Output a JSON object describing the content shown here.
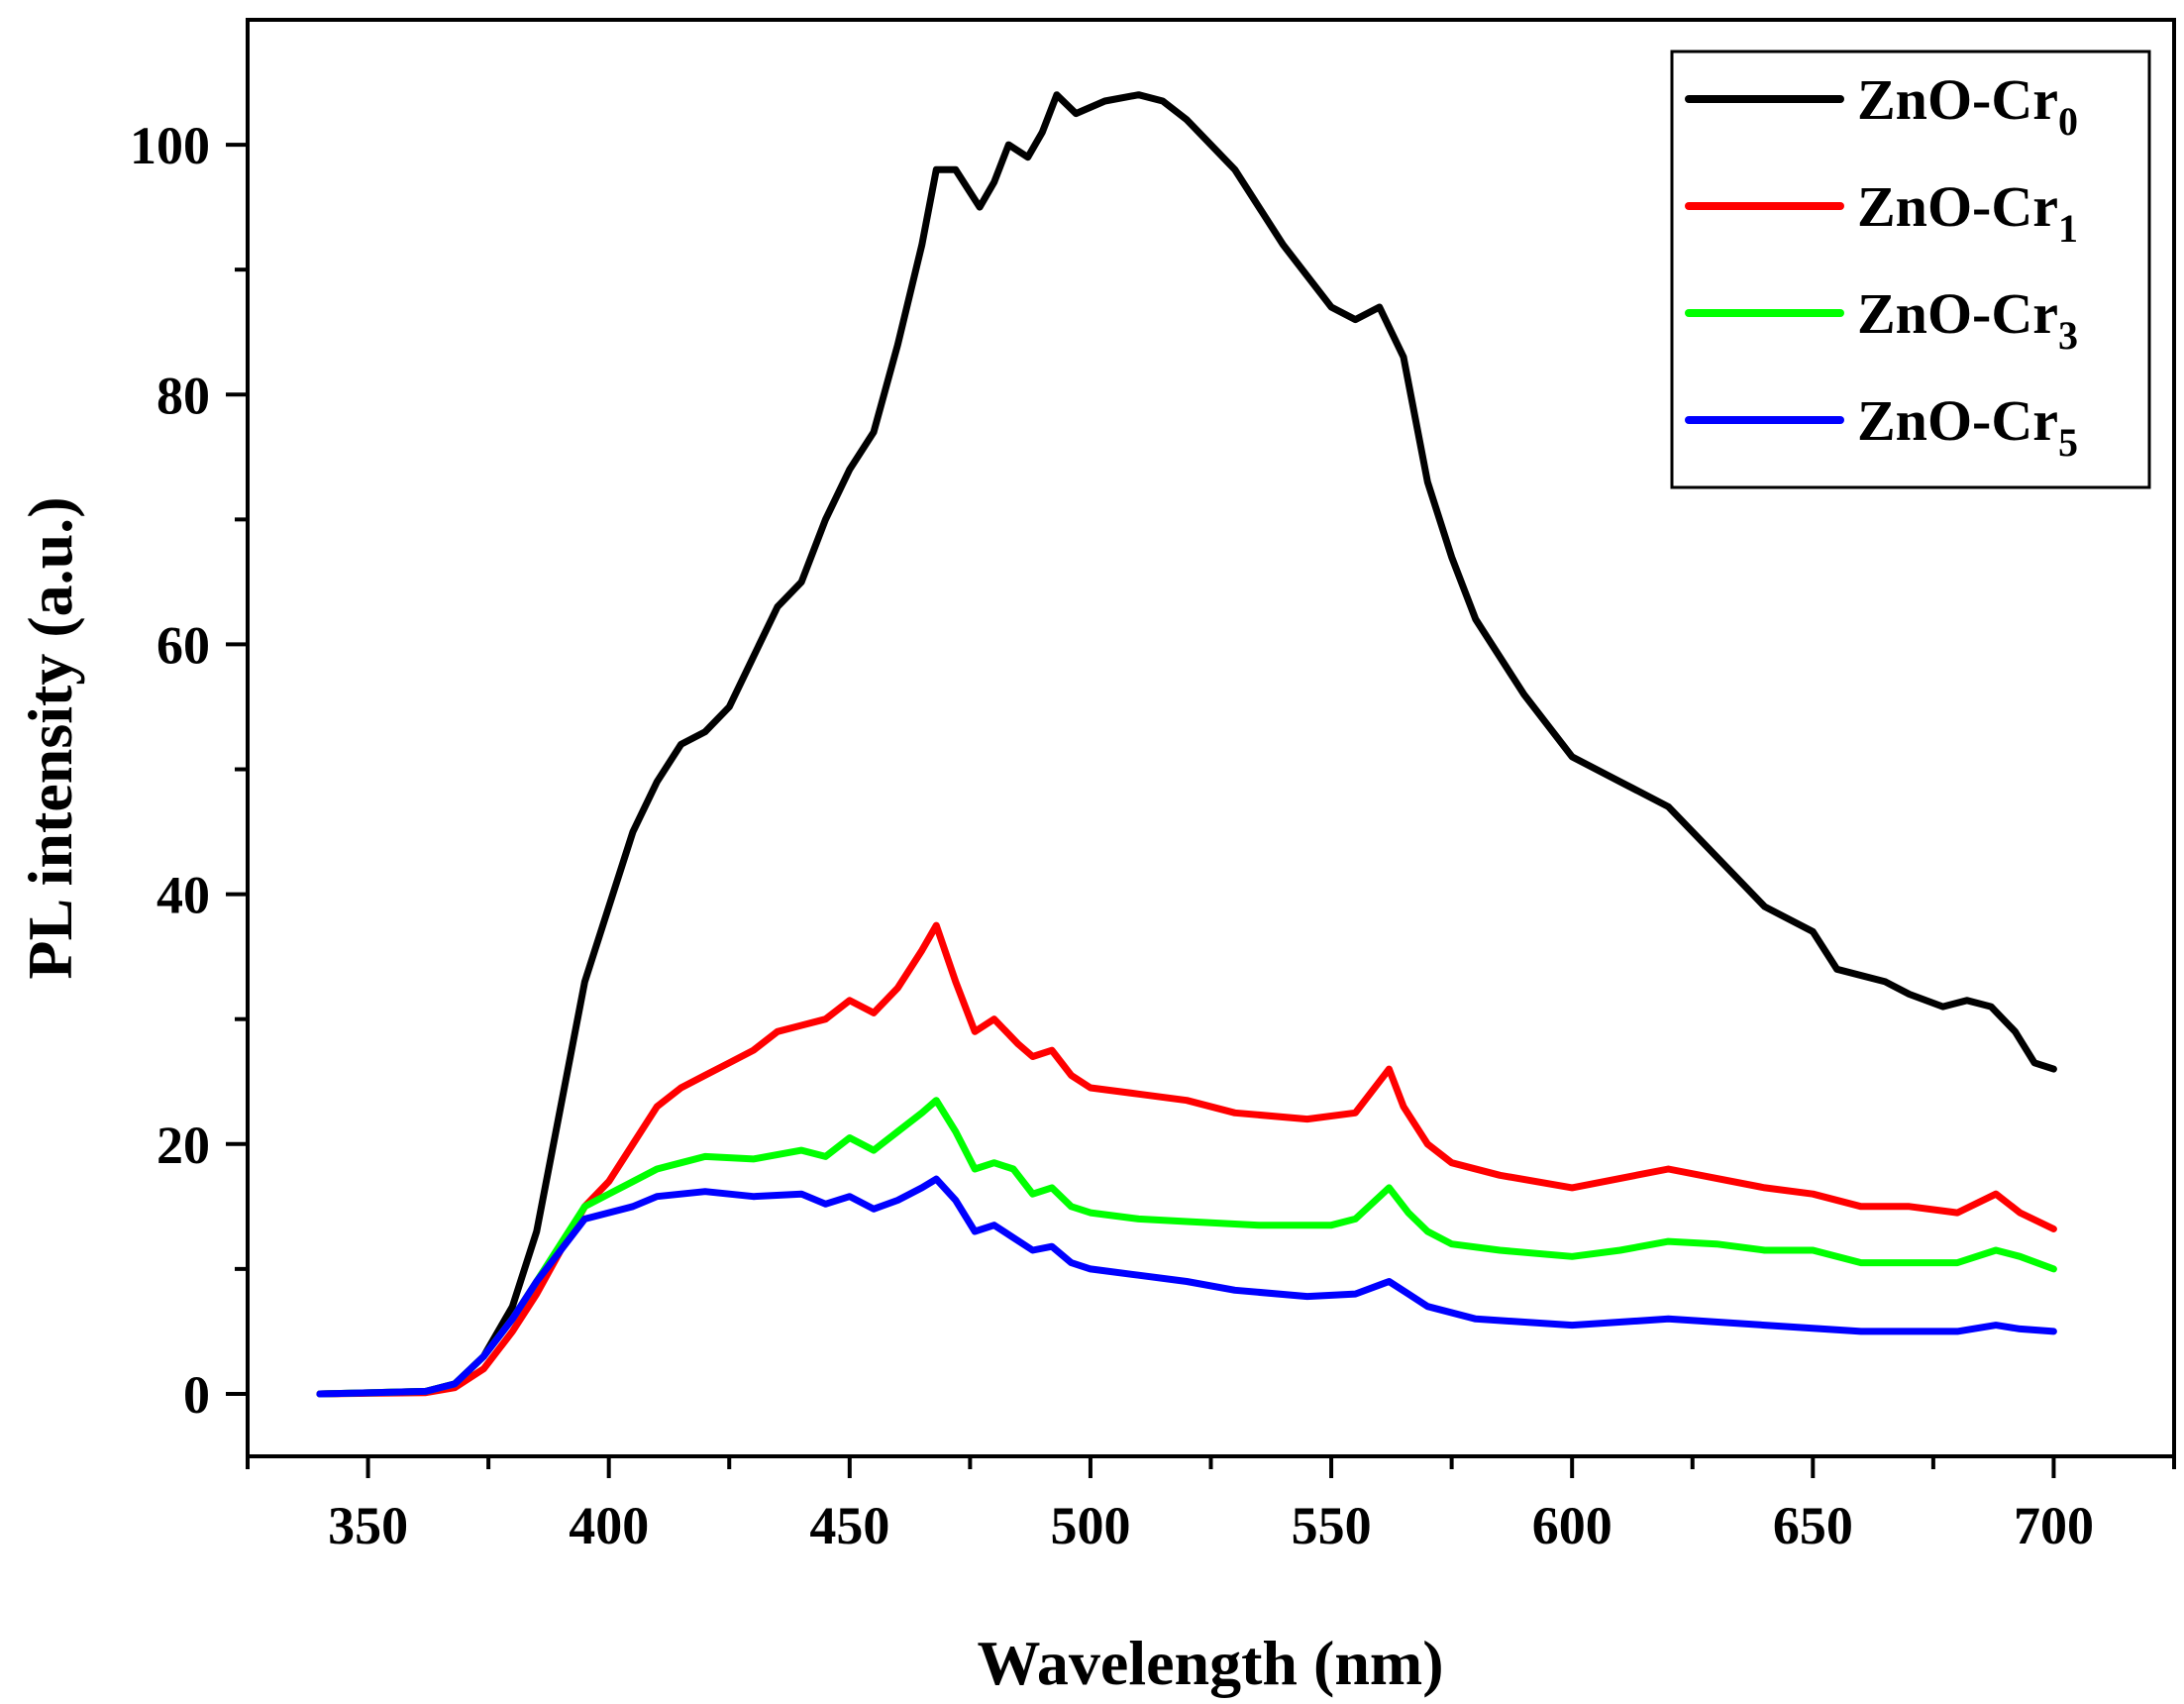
{
  "chart_data": {
    "type": "line",
    "title": "",
    "xlabel": "Wavelength (nm)",
    "ylabel": "PL intensity (a.u.)",
    "xlim": [
      325,
      725
    ],
    "ylim": [
      -5,
      110
    ],
    "xticks": [
      350,
      400,
      450,
      500,
      550,
      600,
      650,
      700
    ],
    "yticks": [
      0,
      20,
      40,
      60,
      80,
      100
    ],
    "grid": false,
    "legend_position": "top-right",
    "series": [
      {
        "name": "ZnO-Cr",
        "subscript": "0",
        "color": "#000000",
        "points": [
          [
            340,
            0
          ],
          [
            362,
            0.2
          ],
          [
            368,
            0.8
          ],
          [
            374,
            3
          ],
          [
            380,
            7
          ],
          [
            385,
            13
          ],
          [
            390,
            23
          ],
          [
            395,
            33
          ],
          [
            400,
            39
          ],
          [
            405,
            45
          ],
          [
            410,
            49
          ],
          [
            415,
            52
          ],
          [
            420,
            53
          ],
          [
            425,
            55
          ],
          [
            430,
            59
          ],
          [
            435,
            63
          ],
          [
            440,
            65
          ],
          [
            445,
            70
          ],
          [
            450,
            74
          ],
          [
            455,
            77
          ],
          [
            460,
            84
          ],
          [
            465,
            92
          ],
          [
            468,
            98
          ],
          [
            472,
            98
          ],
          [
            477,
            95
          ],
          [
            480,
            97
          ],
          [
            483,
            100
          ],
          [
            487,
            99
          ],
          [
            490,
            101
          ],
          [
            493,
            104
          ],
          [
            497,
            102.5
          ],
          [
            503,
            103.5
          ],
          [
            510,
            104
          ],
          [
            515,
            103.5
          ],
          [
            520,
            102
          ],
          [
            530,
            98
          ],
          [
            540,
            92
          ],
          [
            550,
            87
          ],
          [
            555,
            86
          ],
          [
            560,
            87
          ],
          [
            565,
            83
          ],
          [
            570,
            73
          ],
          [
            575,
            67
          ],
          [
            580,
            62
          ],
          [
            590,
            56
          ],
          [
            600,
            51
          ],
          [
            610,
            49
          ],
          [
            620,
            47
          ],
          [
            630,
            43
          ],
          [
            640,
            39
          ],
          [
            650,
            37
          ],
          [
            655,
            34
          ],
          [
            665,
            33
          ],
          [
            670,
            32
          ],
          [
            677,
            31
          ],
          [
            682,
            31.5
          ],
          [
            687,
            31
          ],
          [
            692,
            29
          ],
          [
            696,
            26.5
          ],
          [
            700,
            26
          ]
        ]
      },
      {
        "name": "ZnO-Cr",
        "subscript": "1",
        "color": "#ff0000",
        "points": [
          [
            340,
            0
          ],
          [
            362,
            0.1
          ],
          [
            368,
            0.5
          ],
          [
            374,
            2
          ],
          [
            380,
            5
          ],
          [
            385,
            8
          ],
          [
            390,
            11.5
          ],
          [
            395,
            15
          ],
          [
            400,
            17
          ],
          [
            405,
            20
          ],
          [
            410,
            23
          ],
          [
            415,
            24.5
          ],
          [
            420,
            25.5
          ],
          [
            425,
            26.5
          ],
          [
            430,
            27.5
          ],
          [
            435,
            29
          ],
          [
            440,
            29.5
          ],
          [
            445,
            30
          ],
          [
            450,
            31.5
          ],
          [
            455,
            30.5
          ],
          [
            460,
            32.5
          ],
          [
            465,
            35.5
          ],
          [
            468,
            37.5
          ],
          [
            472,
            33
          ],
          [
            476,
            29
          ],
          [
            480,
            30
          ],
          [
            485,
            28
          ],
          [
            488,
            27
          ],
          [
            492,
            27.5
          ],
          [
            496,
            25.5
          ],
          [
            500,
            24.5
          ],
          [
            510,
            24
          ],
          [
            520,
            23.5
          ],
          [
            530,
            22.5
          ],
          [
            545,
            22
          ],
          [
            555,
            22.5
          ],
          [
            562,
            26
          ],
          [
            565,
            23
          ],
          [
            570,
            20
          ],
          [
            575,
            18.5
          ],
          [
            585,
            17.5
          ],
          [
            600,
            16.5
          ],
          [
            620,
            18
          ],
          [
            640,
            16.5
          ],
          [
            650,
            16
          ],
          [
            660,
            15
          ],
          [
            670,
            15
          ],
          [
            680,
            14.5
          ],
          [
            688,
            16
          ],
          [
            693,
            14.5
          ],
          [
            700,
            13.2
          ]
        ]
      },
      {
        "name": "ZnO-Cr",
        "subscript": "3",
        "color": "#00ff00",
        "points": [
          [
            340,
            0
          ],
          [
            362,
            0.2
          ],
          [
            368,
            0.8
          ],
          [
            374,
            3
          ],
          [
            380,
            6
          ],
          [
            385,
            9
          ],
          [
            390,
            12
          ],
          [
            395,
            15
          ],
          [
            400,
            16
          ],
          [
            405,
            17
          ],
          [
            410,
            18
          ],
          [
            415,
            18.5
          ],
          [
            420,
            19
          ],
          [
            430,
            18.8
          ],
          [
            440,
            19.5
          ],
          [
            445,
            19
          ],
          [
            450,
            20.5
          ],
          [
            455,
            19.5
          ],
          [
            460,
            21
          ],
          [
            465,
            22.5
          ],
          [
            468,
            23.5
          ],
          [
            472,
            21
          ],
          [
            476,
            18
          ],
          [
            480,
            18.5
          ],
          [
            484,
            18
          ],
          [
            488,
            16
          ],
          [
            492,
            16.5
          ],
          [
            496,
            15
          ],
          [
            500,
            14.5
          ],
          [
            510,
            14
          ],
          [
            520,
            13.8
          ],
          [
            535,
            13.5
          ],
          [
            550,
            13.5
          ],
          [
            555,
            14
          ],
          [
            562,
            16.5
          ],
          [
            566,
            14.5
          ],
          [
            570,
            13
          ],
          [
            575,
            12
          ],
          [
            585,
            11.5
          ],
          [
            600,
            11
          ],
          [
            610,
            11.5
          ],
          [
            620,
            12.2
          ],
          [
            630,
            12
          ],
          [
            640,
            11.5
          ],
          [
            650,
            11.5
          ],
          [
            660,
            10.5
          ],
          [
            670,
            10.5
          ],
          [
            680,
            10.5
          ],
          [
            688,
            11.5
          ],
          [
            693,
            11
          ],
          [
            700,
            10
          ]
        ]
      },
      {
        "name": "ZnO-Cr",
        "subscript": "5",
        "color": "#0000ff",
        "points": [
          [
            340,
            0
          ],
          [
            362,
            0.2
          ],
          [
            368,
            0.8
          ],
          [
            374,
            3
          ],
          [
            380,
            6
          ],
          [
            385,
            9
          ],
          [
            390,
            11.5
          ],
          [
            395,
            14
          ],
          [
            400,
            14.5
          ],
          [
            405,
            15
          ],
          [
            410,
            15.8
          ],
          [
            415,
            16
          ],
          [
            420,
            16.2
          ],
          [
            430,
            15.8
          ],
          [
            440,
            16
          ],
          [
            445,
            15.2
          ],
          [
            450,
            15.8
          ],
          [
            455,
            14.8
          ],
          [
            460,
            15.5
          ],
          [
            465,
            16.5
          ],
          [
            468,
            17.2
          ],
          [
            472,
            15.5
          ],
          [
            476,
            13
          ],
          [
            480,
            13.5
          ],
          [
            484,
            12.5
          ],
          [
            488,
            11.5
          ],
          [
            492,
            11.8
          ],
          [
            496,
            10.5
          ],
          [
            500,
            10
          ],
          [
            510,
            9.5
          ],
          [
            520,
            9
          ],
          [
            530,
            8.3
          ],
          [
            545,
            7.8
          ],
          [
            555,
            8
          ],
          [
            562,
            9
          ],
          [
            566,
            8
          ],
          [
            570,
            7
          ],
          [
            580,
            6
          ],
          [
            600,
            5.5
          ],
          [
            620,
            6
          ],
          [
            640,
            5.5
          ],
          [
            660,
            5
          ],
          [
            680,
            5
          ],
          [
            688,
            5.5
          ],
          [
            693,
            5.2
          ],
          [
            700,
            5
          ]
        ]
      }
    ]
  }
}
